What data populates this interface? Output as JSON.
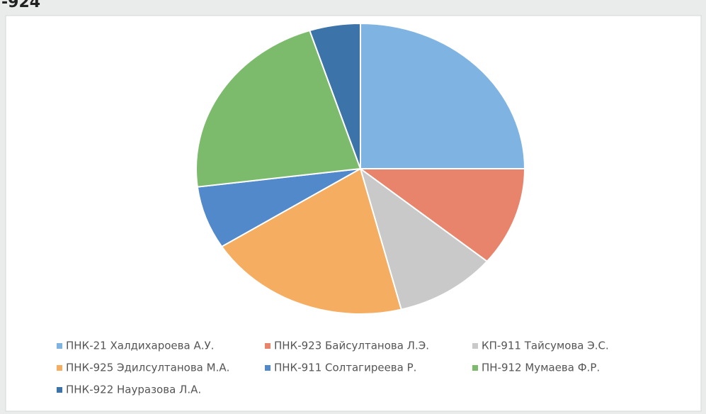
{
  "chart_data": {
    "type": "pie",
    "title": "-924",
    "categories": [
      "ПНК-21 Халдихароева А.У.",
      "ПНК-923 Байсултанова Л.Э.",
      "КП-911 Тайсумова Э.С.",
      "ПНК-925 Эдилсултанова М.А.",
      "ПНК-911 Солтагиреева Р.",
      "ПН-912 Мумаева Ф.Р.",
      "ПНК-922 Науразова Л.А."
    ],
    "values": [
      25,
      11,
      10,
      20,
      7,
      22,
      5
    ],
    "colors": [
      "#7fb4e2",
      "#e8846c",
      "#c9c9c9",
      "#f5ad62",
      "#5189cb",
      "#7cbb6c",
      "#3c73a8"
    ],
    "legend": "bottom"
  }
}
